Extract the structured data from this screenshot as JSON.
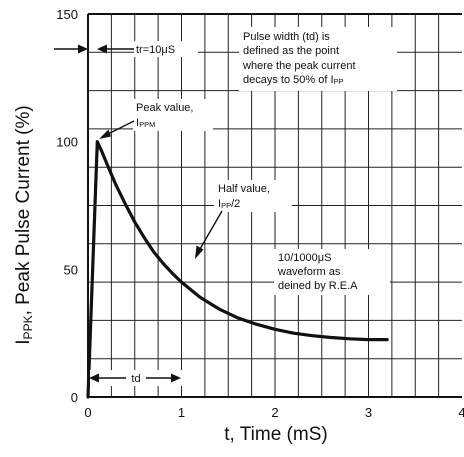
{
  "chart_data": {
    "type": "line",
    "xlabel": "t, Time (mS)",
    "ylabel": {
      "main": "I",
      "sub": "PPK",
      "rest": ", Peak Pulse Current (%)"
    },
    "xlim": [
      0,
      4
    ],
    "ylim": [
      0,
      150
    ],
    "xticks": [
      "0",
      "1",
      "2",
      "3",
      "4"
    ],
    "yticks": [
      "0",
      "50",
      "100",
      "150"
    ],
    "grid": true,
    "series": [
      {
        "x": [
          0,
          0.1,
          0.15,
          0.2,
          0.3,
          0.4,
          0.5,
          0.6,
          0.7,
          0.8,
          0.9,
          1.0,
          1.2,
          1.4,
          1.6,
          1.8,
          2.0,
          2.2,
          2.4,
          2.6,
          2.8,
          3.0,
          3.2
        ],
        "y": [
          0,
          100,
          96,
          91.5,
          83,
          75.5,
          68.5,
          62.5,
          57,
          52.5,
          48.5,
          45,
          39,
          34.5,
          31,
          28.5,
          26.5,
          25,
          24,
          23.3,
          22.8,
          22.5,
          22.5
        ]
      }
    ],
    "annotations": {
      "tr": "tr=10μS",
      "pulse_width": [
        "Pulse width (td) is",
        "defined as the point",
        "where the peak current",
        "decays to 50% of I"
      ],
      "pulse_width_sub": "PP",
      "peak_value": "Peak value,",
      "peak_sub_main": "I",
      "peak_sub": "PPM",
      "half_value": "Half value,",
      "half_main": "I",
      "half_sub": "PP",
      "half_tail": "/2",
      "waveform": [
        "10/1000μS",
        "waveform as",
        "deined by R.E.A"
      ],
      "td": "td"
    }
  }
}
